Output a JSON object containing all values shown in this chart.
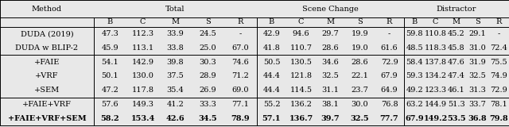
{
  "group_headers": [
    "Total",
    "Scene Change",
    "Distractor"
  ],
  "sub_headers": [
    "B",
    "C",
    "M",
    "S",
    "R"
  ],
  "rows": [
    [
      "DUDA (2019)",
      "47.3",
      "112.3",
      "33.9",
      "24.5",
      "-",
      "42.9",
      "94.6",
      "29.7",
      "19.9",
      "-",
      "59.8",
      "110.8",
      "45.2",
      "29.1",
      "-"
    ],
    [
      "DUDA w BLIP-2",
      "45.9",
      "113.1",
      "33.8",
      "25.0",
      "67.0",
      "41.8",
      "110.7",
      "28.6",
      "19.0",
      "61.6",
      "48.5",
      "118.3",
      "45.8",
      "31.0",
      "72.4"
    ],
    [
      "+FAIE",
      "54.1",
      "142.9",
      "39.8",
      "30.3",
      "74.6",
      "50.5",
      "130.5",
      "34.6",
      "28.6",
      "72.9",
      "58.4",
      "137.8",
      "47.6",
      "31.9",
      "75.5"
    ],
    [
      "+VRF",
      "50.1",
      "130.0",
      "37.5",
      "28.9",
      "71.2",
      "44.4",
      "121.8",
      "32.5",
      "22.1",
      "67.9",
      "59.3",
      "134.2",
      "47.4",
      "32.5",
      "74.9"
    ],
    [
      "+SEM",
      "47.2",
      "117.8",
      "35.4",
      "26.9",
      "69.0",
      "44.4",
      "114.5",
      "31.1",
      "23.7",
      "64.9",
      "49.2",
      "123.3",
      "46.1",
      "31.3",
      "72.9"
    ],
    [
      "+FAIE+VRF",
      "57.6",
      "149.3",
      "41.2",
      "33.3",
      "77.1",
      "55.2",
      "136.2",
      "38.1",
      "30.0",
      "76.8",
      "63.2",
      "144.9",
      "51.3",
      "33.7",
      "78.1"
    ],
    [
      "+FAIE+VRF+SEM",
      "58.2",
      "153.4",
      "42.6",
      "34.5",
      "78.9",
      "57.1",
      "136.7",
      "39.7",
      "32.5",
      "77.7",
      "67.9",
      "149.2",
      "53.5",
      "36.8",
      "79.8"
    ]
  ],
  "bold_row_index": 6,
  "separator_after": [
    1,
    4
  ],
  "background": "#e8e8e8",
  "font": "DejaVu Serif"
}
